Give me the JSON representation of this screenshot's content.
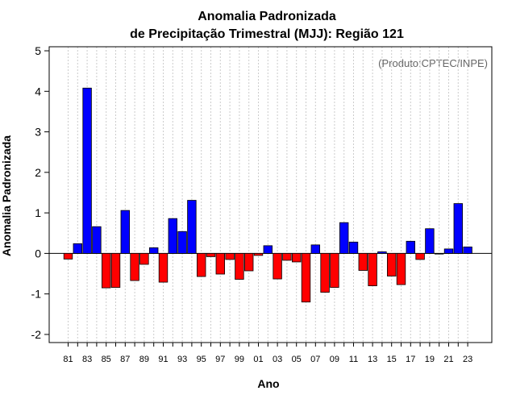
{
  "chart_data": {
    "type": "bar",
    "title": "Anomalia Padronizada",
    "subtitle": "de Precipitação Trimestral (MJJ): Região 121",
    "xlabel": "Ano",
    "ylabel": "Anomalia Padronizada",
    "credit": "(Produto:CPTEC/INPE)",
    "ylim": [
      -2.2,
      5.1
    ],
    "yticks": [
      "-2",
      "-1",
      "0",
      "1",
      "2",
      "3",
      "4",
      "5"
    ],
    "ytick_values": [
      -2,
      -1,
      0,
      1,
      2,
      3,
      4,
      5
    ],
    "xtick_labels": [
      "81",
      "83",
      "85",
      "87",
      "89",
      "91",
      "93",
      "95",
      "97",
      "99",
      "01",
      "03",
      "05",
      "07",
      "09",
      "11",
      "13",
      "15",
      "17",
      "19",
      "21",
      "23"
    ],
    "categories": [
      "1981",
      "1982",
      "1983",
      "1984",
      "1985",
      "1986",
      "1987",
      "1988",
      "1989",
      "1990",
      "1991",
      "1992",
      "1993",
      "1994",
      "1995",
      "1996",
      "1997",
      "1998",
      "1999",
      "2000",
      "2001",
      "2002",
      "2003",
      "2004",
      "2005",
      "2006",
      "2007",
      "2008",
      "2009",
      "2010",
      "2011",
      "2012",
      "2013",
      "2014",
      "2015",
      "2016",
      "2017",
      "2018",
      "2019",
      "2020",
      "2021",
      "2022",
      "2023"
    ],
    "values": [
      -0.14,
      0.24,
      4.08,
      0.66,
      -0.85,
      -0.84,
      1.06,
      -0.67,
      -0.27,
      0.14,
      -0.71,
      0.86,
      0.54,
      1.31,
      -0.57,
      -0.08,
      -0.51,
      -0.15,
      -0.64,
      -0.43,
      -0.05,
      0.19,
      -0.63,
      -0.17,
      -0.21,
      -1.2,
      0.21,
      -0.96,
      -0.84,
      0.76,
      0.28,
      -0.42,
      -0.8,
      0.04,
      -0.56,
      -0.77,
      0.3,
      -0.15,
      0.61,
      0.0,
      0.11,
      1.23,
      0.16
    ],
    "colors": {
      "positive": "#0000FF",
      "negative": "#FF0000",
      "zero_line": "#000000",
      "grid": "#CCCCCC"
    },
    "grid": true
  }
}
